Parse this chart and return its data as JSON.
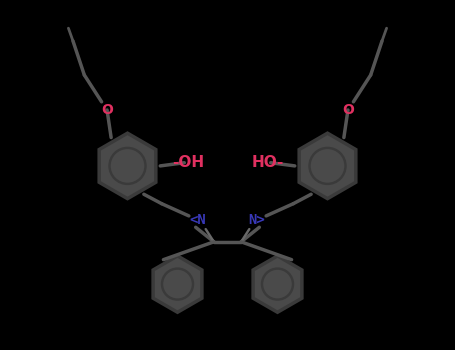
{
  "background_color": "#000000",
  "ring_fill": "#4a4a4a",
  "ring_edge": "#3a3a3a",
  "bond_color": "#555555",
  "oh_color": "#e03060",
  "o_color": "#e03060",
  "n_color": "#3838b8",
  "figsize": [
    4.55,
    3.5
  ],
  "dpi": 100,
  "oh_left_text": "-OH",
  "oh_right_text": "HO-",
  "n_left_text": "<N",
  "n_right_text": "N>",
  "o_left_text": "O",
  "o_right_text": "O",
  "font_size_oh": 11,
  "font_size_o": 10,
  "font_size_n": 10
}
